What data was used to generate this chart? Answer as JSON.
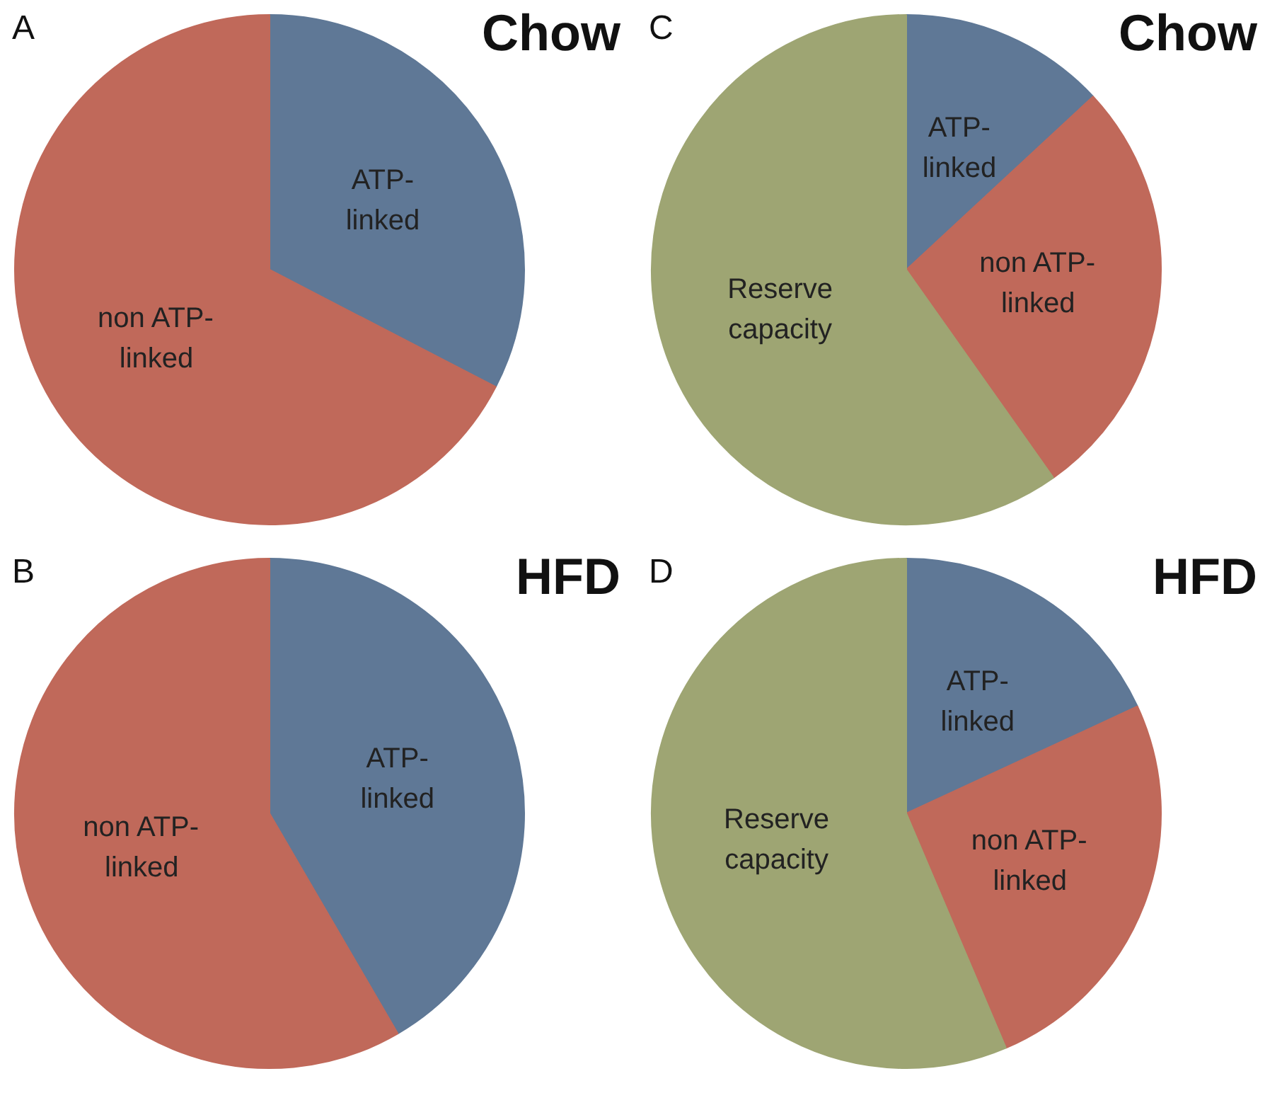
{
  "chart_data": [
    {
      "type": "pie",
      "title": "Chow",
      "annotations": [
        "A"
      ],
      "categories": [
        "ATP-linked",
        "non ATP-linked"
      ],
      "values": [
        32.6,
        67.4
      ],
      "colors": [
        "#5f7896",
        "#c0695a"
      ]
    },
    {
      "type": "pie",
      "title": "Chow",
      "annotations": [
        "C"
      ],
      "categories": [
        "ATP-linked",
        "non ATP-linked",
        "Reserve capacity"
      ],
      "values": [
        13.1,
        27.1,
        59.8
      ],
      "colors": [
        "#5f7896",
        "#c0695a",
        "#9ea573"
      ]
    },
    {
      "type": "pie",
      "title": "HFD",
      "annotations": [
        "B"
      ],
      "categories": [
        "ATP-linked",
        "non ATP-linked"
      ],
      "values": [
        41.6,
        58.4
      ],
      "colors": [
        "#5f7896",
        "#c0695a"
      ]
    },
    {
      "type": "pie",
      "title": "HFD",
      "annotations": [
        "D"
      ],
      "categories": [
        "ATP-linked",
        "non ATP-linked",
        "Reserve capacity"
      ],
      "values": [
        18.1,
        25.5,
        56.4
      ],
      "colors": [
        "#5f7896",
        "#c0695a",
        "#9ea573"
      ]
    }
  ]
}
